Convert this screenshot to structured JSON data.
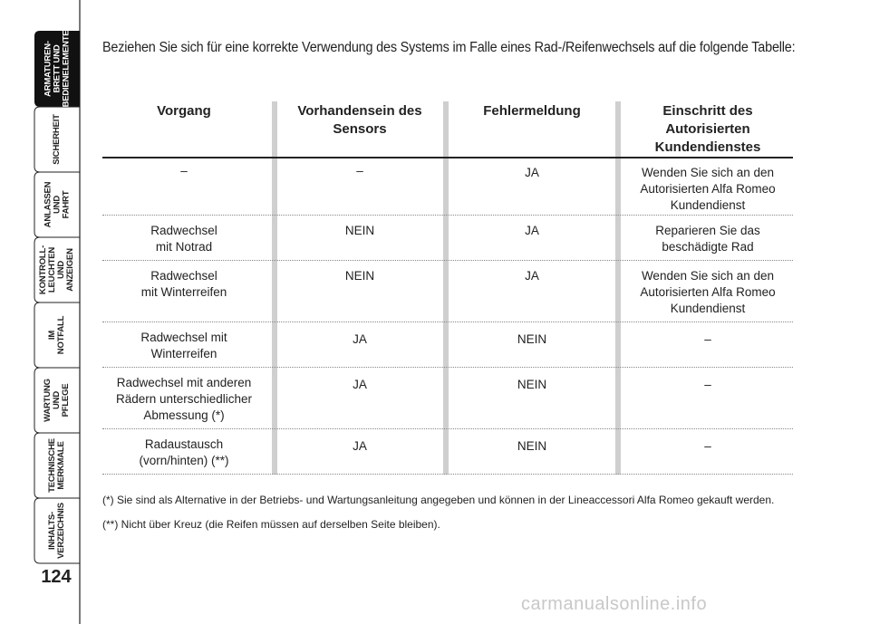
{
  "sidebar": {
    "tabs": [
      {
        "label": "ARMATUREN-\nBRETT UND\nBEDIENELEMENTE",
        "active": true
      },
      {
        "label": "SICHERHEIT"
      },
      {
        "label": "ANLASSEN\nUND FAHRT"
      },
      {
        "label": "KONTROLL-\nLEUCHTEN\nUND ANZEIGEN"
      },
      {
        "label": "IM NOTFALL"
      },
      {
        "label": "WARTUNG\nUND PFLEGE"
      },
      {
        "label": "TECHNISCHE\nMERKMALE"
      },
      {
        "label": "INHALTS-\nVERZEICHNIS"
      }
    ],
    "page_number": "124"
  },
  "intro": "Beziehen Sie sich für eine korrekte Verwendung des Systems im Falle eines Rad-/Reifenwechsels auf die folgende Tabelle:",
  "table": {
    "headers": [
      "Vorgang",
      "Vorhandensein des\nSensors",
      "Fehlermeldung",
      "Einschritt des\nAutorisierten\nKundendienstes"
    ],
    "rows": [
      [
        "–",
        "–",
        "JA",
        "Wenden Sie sich an den\nAutorisierten Alfa Romeo\nKundendienst"
      ],
      [
        "Radwechsel\nmit Notrad",
        "NEIN",
        "JA",
        "Reparieren Sie das\nbeschädigte Rad"
      ],
      [
        "Radwechsel\nmit Winterreifen",
        "NEIN",
        "JA",
        "Wenden Sie sich an den\nAutorisierten Alfa Romeo\nKundendienst"
      ],
      [
        "Radwechsel mit\nWinterreifen",
        "JA",
        "NEIN",
        "–"
      ],
      [
        "Radwechsel mit anderen\nRädern unterschiedlicher\nAbmessung (*)",
        "JA",
        "NEIN",
        "–"
      ],
      [
        "Radaustausch\n(vorn/hinten) (**)",
        "JA",
        "NEIN",
        "–"
      ]
    ]
  },
  "notes": [
    "(*) Sie sind als Alternative in der Betriebs- und Wartungsanleitung angegeben und können in der Lineaccessori Alfa Romeo gekauft werden.",
    "(**) Nicht über Kreuz (die Reifen müssen auf derselben Seite bleiben)."
  ],
  "watermark": "carmanualsonline.info",
  "colors": {
    "active_tab": "#111111",
    "column_bar": "#cfcfcf"
  }
}
